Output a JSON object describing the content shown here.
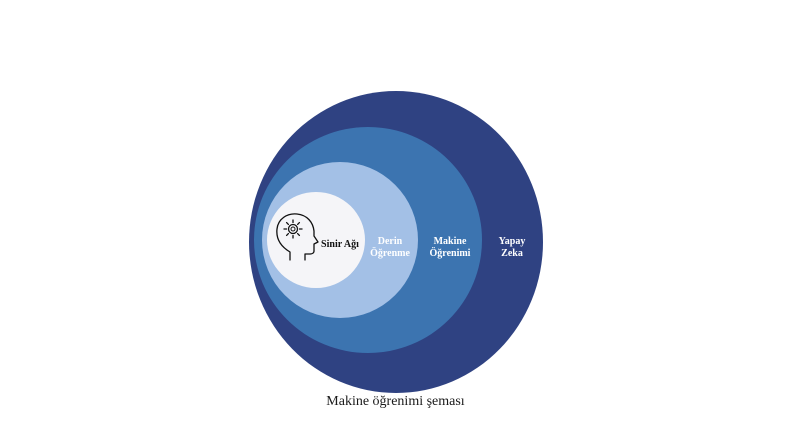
{
  "diagram": {
    "caption": "Makine öğrenimi şeması",
    "layers": [
      {
        "id": "yapay-zeka",
        "line1": "Yapay",
        "line2": "Zeka",
        "color": "#2f4282",
        "text_color": "#ffffff"
      },
      {
        "id": "makine-ogrenimi",
        "line1": "Makine",
        "line2": "Öğrenimi",
        "color": "#3c74b0",
        "text_color": "#ffffff"
      },
      {
        "id": "derin-ogrenme",
        "line1": "Derin",
        "line2": "Öğrenme",
        "color": "#a3c0e6",
        "text_color": "#ffffff"
      },
      {
        "id": "sinir-agi",
        "line1": "Sinir Ağı",
        "color": "#f5f5f8",
        "text_color": "#111111"
      }
    ],
    "center_icon": "head-with-gear-icon"
  }
}
